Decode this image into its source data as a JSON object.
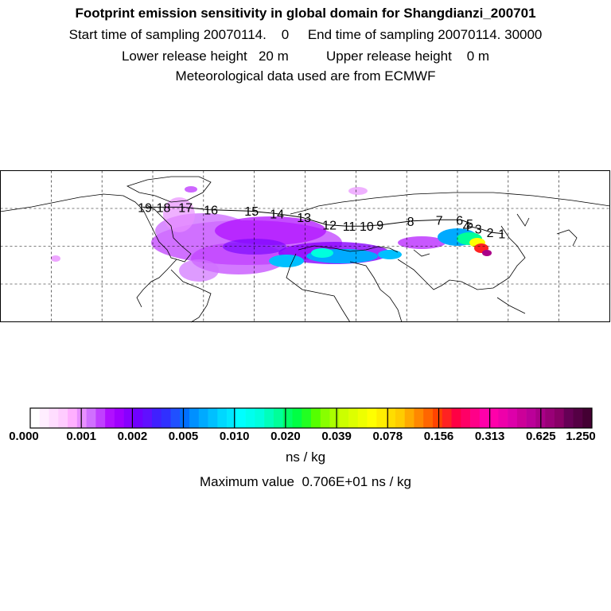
{
  "header": {
    "title": "Footprint emission sensitivity in global domain for Shangdianzi_200701",
    "start_label": "Start time of sampling 20070114.",
    "start_hour": "0",
    "end_label": "End time of sampling 20070114. 30000",
    "lower_label": "Lower release height",
    "lower_value": "20 m",
    "upper_label": "Upper release height",
    "upper_value": "0 m",
    "met": "Meteorological data used are from ECMWF"
  },
  "chart_data": {
    "type": "heatmap",
    "title": "Footprint emission sensitivity in global domain for Shangdianzi_200701",
    "map_extent": {
      "lon": [
        -180,
        180
      ],
      "lat": [
        -30,
        90
      ]
    },
    "grid": true,
    "grid_spacing_deg": 30,
    "trajectory_labels": [
      "1",
      "2",
      "3",
      "4",
      "5",
      "6",
      "7",
      "8",
      "9",
      "10",
      "11",
      "12",
      "13",
      "14",
      "15",
      "16",
      "17",
      "18",
      "19"
    ],
    "trajectory": [
      {
        "label": "1",
        "lon": 117,
        "lat": 40
      },
      {
        "label": "2",
        "lon": 110,
        "lat": 41
      },
      {
        "label": "3",
        "lon": 103,
        "lat": 44
      },
      {
        "label": "4",
        "lon": 96,
        "lat": 46
      },
      {
        "label": "5",
        "lon": 98,
        "lat": 48
      },
      {
        "label": "6",
        "lon": 92,
        "lat": 51
      },
      {
        "label": "7",
        "lon": 80,
        "lat": 51
      },
      {
        "label": "8",
        "lon": 63,
        "lat": 50
      },
      {
        "label": "9",
        "lon": 45,
        "lat": 47
      },
      {
        "label": "10",
        "lon": 35,
        "lat": 46
      },
      {
        "label": "11",
        "lon": 25,
        "lat": 46
      },
      {
        "label": "12",
        "lon": 13,
        "lat": 47
      },
      {
        "label": "13",
        "lon": -2,
        "lat": 53
      },
      {
        "label": "14",
        "lon": -18,
        "lat": 56
      },
      {
        "label": "15",
        "lon": -33,
        "lat": 58
      },
      {
        "label": "16",
        "lon": -57,
        "lat": 59
      },
      {
        "label": "17",
        "lon": -72,
        "lat": 61
      },
      {
        "label": "18",
        "lon": -85,
        "lat": 61
      },
      {
        "label": "19",
        "lon": -96,
        "lat": 61
      }
    ],
    "colorbar": {
      "ticks": [
        "0.000",
        "0.001",
        "0.002",
        "0.005",
        "0.010",
        "0.020",
        "0.039",
        "0.078",
        "0.156",
        "0.313",
        "0.625",
        "1.250"
      ],
      "unit": "ns / kg",
      "colors": [
        "#ffffff",
        "#ffeeff",
        "#ffddff",
        "#ffccff",
        "#ffb0ff",
        "#e890ff",
        "#d070ff",
        "#c040ff",
        "#b010ff",
        "#a000ff",
        "#8800ff",
        "#7000ff",
        "#6010ff",
        "#4020ff",
        "#3030ff",
        "#2050ff",
        "#0070ff",
        "#0090ff",
        "#00aaff",
        "#00c0ff",
        "#00d8ff",
        "#00e8ff",
        "#00ffff",
        "#00ffee",
        "#00ffdd",
        "#00ffbb",
        "#00ff99",
        "#00ff66",
        "#00ff44",
        "#22ff22",
        "#55ff00",
        "#88ff00",
        "#aaff00",
        "#ccff00",
        "#ddff00",
        "#eeff00",
        "#ffff00",
        "#ffee00",
        "#ffdd00",
        "#ffcc00",
        "#ffaa00",
        "#ff8800",
        "#ff6600",
        "#ff4400",
        "#ff2222",
        "#ff0044",
        "#ff0066",
        "#ff0088",
        "#ff00aa",
        "#ff00aa",
        "#ee00aa",
        "#dd00aa",
        "#cc0099",
        "#bb0099",
        "#aa0088",
        "#990077",
        "#880066",
        "#660055",
        "#550044",
        "#440033"
      ]
    },
    "max_label": "Maximum value",
    "max_value": "0.706E+01",
    "max_unit": "ns / kg"
  }
}
